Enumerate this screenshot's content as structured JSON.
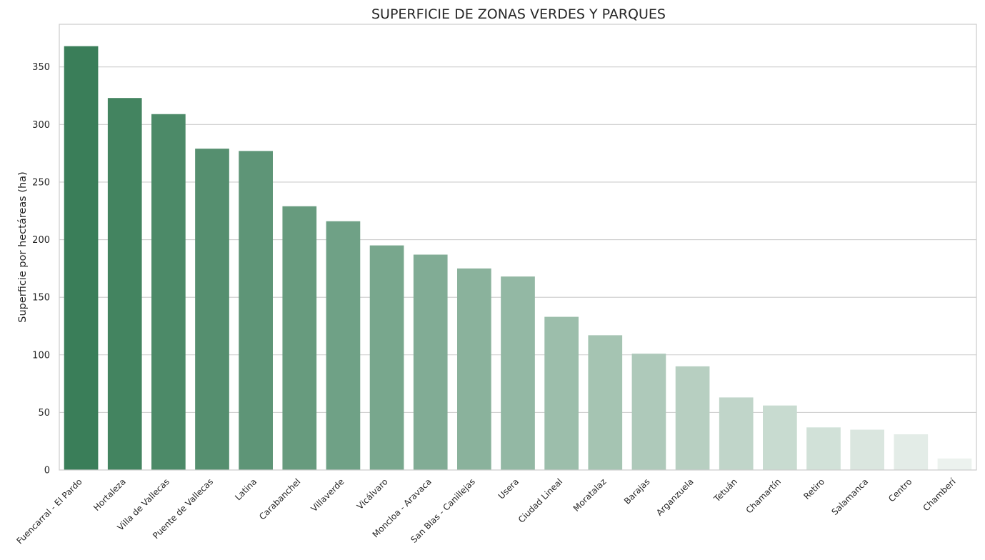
{
  "chart_data": {
    "type": "bar",
    "title": "SUPERFICIE DE ZONAS VERDES Y PARQUES",
    "xlabel": "",
    "ylabel": "Superficie por hectáreas (ha)",
    "ylim": [
      0,
      387
    ],
    "yticks": [
      0,
      50,
      100,
      150,
      200,
      250,
      300,
      350
    ],
    "grid": "horizontal",
    "categories": [
      "Fuencarral - El Pardo",
      "Hortaleza",
      "Villa de Vallecas",
      "Puente de Vallecas",
      "Latina",
      "Carabanchel",
      "Villaverde",
      "Vicálvaro",
      "Moncloa - Aravaca",
      "San Blas - Canillejas",
      "Usera",
      "Ciudad Lineal",
      "Moratalaz",
      "Barajas",
      "Arganzuela",
      "Tetuán",
      "Chamartín",
      "Retiro",
      "Salamanca",
      "Centro",
      "Chamberí"
    ],
    "values": [
      368,
      323,
      309,
      279,
      277,
      229,
      216,
      195,
      187,
      175,
      168,
      133,
      117,
      101,
      90,
      63,
      56,
      37,
      35,
      31,
      10
    ],
    "colors": {
      "start": "#3a7e59",
      "end": "#ecf2ee"
    }
  }
}
